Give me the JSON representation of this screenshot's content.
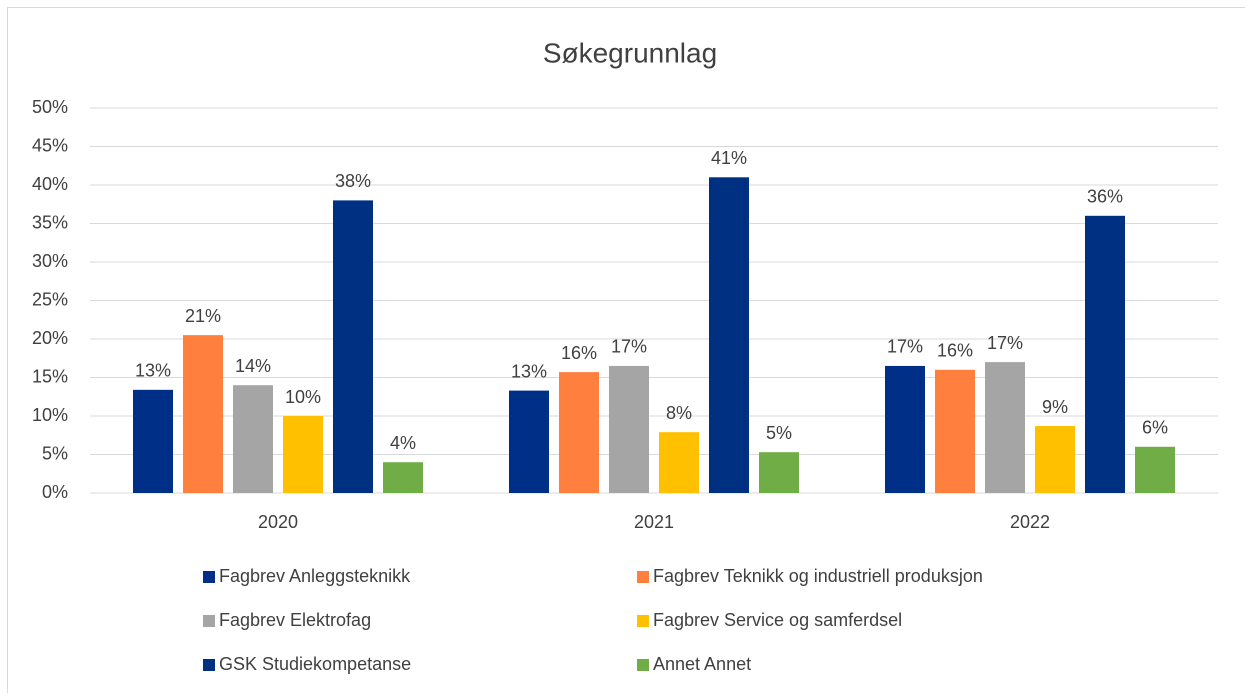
{
  "chart_data": {
    "type": "bar",
    "title": "Søkegrunnlag",
    "categories": [
      "2020",
      "2021",
      "2022"
    ],
    "series": [
      {
        "name": "Fagbrev Anleggsteknikk",
        "color": "#002f87",
        "values": [
          13.4,
          13.3,
          16.5
        ],
        "value_labels": [
          "13%",
          "13%",
          "17%"
        ]
      },
      {
        "name": "Fagbrev Teknikk og industriell produksjon",
        "color": "#ff7f3f",
        "values": [
          20.5,
          15.7,
          16
        ],
        "value_labels": [
          "21%",
          "16%",
          "16%"
        ]
      },
      {
        "name": "Fagbrev Elektrofag",
        "color": "#a5a5a5",
        "values": [
          14,
          16.5,
          17
        ],
        "value_labels": [
          "14%",
          "17%",
          "17%"
        ]
      },
      {
        "name": "Fagbrev Service og samferdsel",
        "color": "#ffc000",
        "values": [
          10,
          7.9,
          8.7
        ],
        "value_labels": [
          "10%",
          "8%",
          "9%"
        ]
      },
      {
        "name": "GSK Studiekompetanse",
        "color": "#003082",
        "values": [
          38,
          41,
          36
        ],
        "value_labels": [
          "38%",
          "41%",
          "36%"
        ]
      },
      {
        "name": "Annet Annet",
        "color": "#70ad47",
        "values": [
          4,
          5.3,
          6
        ],
        "value_labels": [
          "4%",
          "5%",
          "6%"
        ]
      }
    ],
    "ylim": [
      0,
      50
    ],
    "yticks": [
      {
        "value": 0,
        "label": "0%"
      },
      {
        "value": 5,
        "label": "5%"
      },
      {
        "value": 10,
        "label": "10%"
      },
      {
        "value": 15,
        "label": "15%"
      },
      {
        "value": 20,
        "label": "20%"
      },
      {
        "value": 25,
        "label": "25%"
      },
      {
        "value": 30,
        "label": "30%"
      },
      {
        "value": 35,
        "label": "35%"
      },
      {
        "value": 40,
        "label": "40%"
      },
      {
        "value": 45,
        "label": "45%"
      },
      {
        "value": 50,
        "label": "50%"
      }
    ],
    "grid": true,
    "legend": "bottom"
  }
}
